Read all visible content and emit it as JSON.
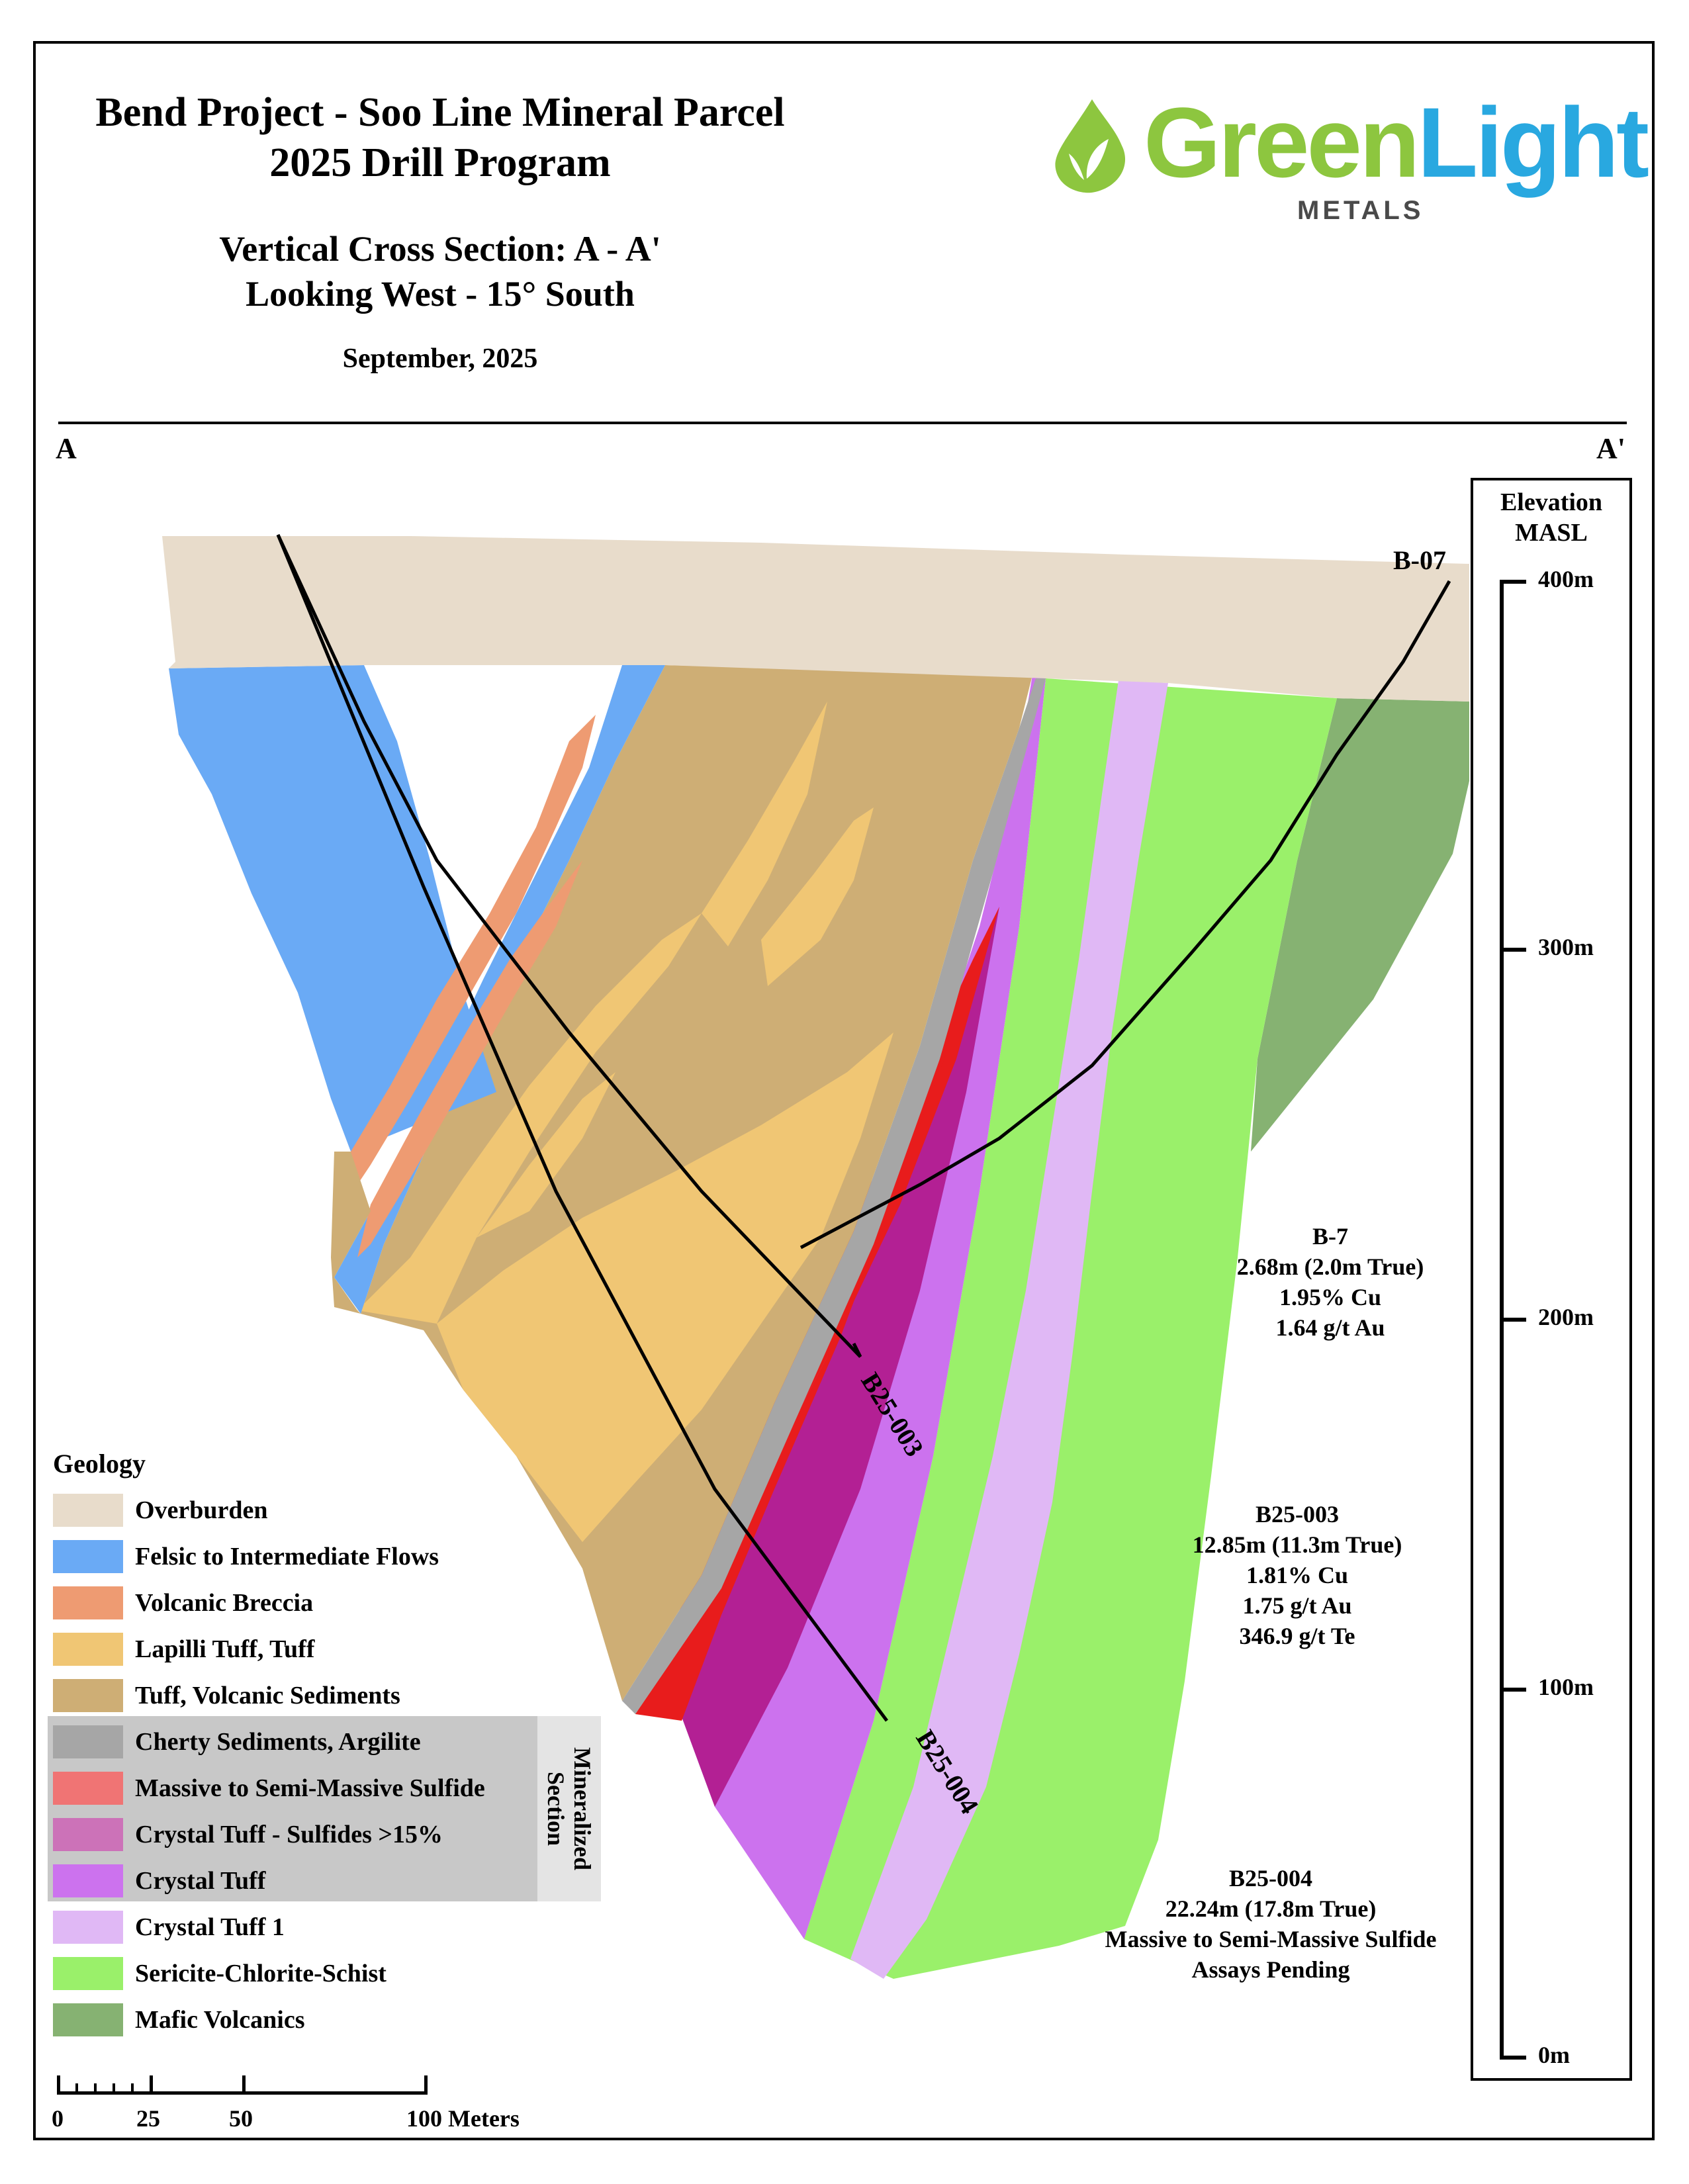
{
  "header": {
    "title_line1": "Bend Project - Soo Line Mineral Parcel",
    "title_line2": "2025 Drill Program",
    "section_line1": "Vertical Cross Section: A - A'",
    "section_line2": "Looking West - 15° South",
    "date": "September, 2025"
  },
  "logo": {
    "word_green": "Green",
    "word_light": "Light",
    "word_metals": "METALS",
    "icon": "leaf-drop-icon",
    "colors": {
      "green": "#8dc63f",
      "blue": "#29a8e0"
    }
  },
  "section_ends": {
    "left": "A",
    "right": "A'"
  },
  "drillholes": [
    {
      "name": "B-07"
    },
    {
      "name": "B25-003"
    },
    {
      "name": "B25-004"
    }
  ],
  "intercepts": [
    {
      "lines": [
        "B-7",
        "2.68m (2.0m True)",
        "1.95% Cu",
        "1.64 g/t Au"
      ]
    },
    {
      "lines": [
        "B25-003",
        "12.85m (11.3m True)",
        "1.81% Cu",
        "1.75 g/t Au",
        "346.9 g/t Te"
      ]
    },
    {
      "lines": [
        "B25-004",
        "22.24m (17.8m True)",
        "Massive to Semi-Massive Sulfide",
        "Assays Pending"
      ]
    }
  ],
  "elevation": {
    "title_line1": "Elevation",
    "title_line2": "MASL",
    "ticks": [
      "400m",
      "300m",
      "200m",
      "100m",
      "0m"
    ]
  },
  "legend": {
    "title": "Geology",
    "mineralized_label_line1": "Mineralized",
    "mineralized_label_line2": "Section",
    "items": [
      {
        "label": "Overburden",
        "color": "#e8dccb"
      },
      {
        "label": "Felsic to Intermediate Flows",
        "color": "#6aaaf5"
      },
      {
        "label": "Volcanic Breccia",
        "color": "#ee9b72"
      },
      {
        "label": "Lapilli Tuff, Tuff",
        "color": "#f0c674"
      },
      {
        "label": "Tuff, Volcanic Sediments",
        "color": "#ceae75"
      },
      {
        "label": "Cherty Sediments, Argilite",
        "color": "#a6a6a6"
      },
      {
        "label": "Massive to Semi-Massive Sulfide",
        "color": "#f07474"
      },
      {
        "label": "Crystal Tuff - Sulfides >15%",
        "color": "#cc72b8"
      },
      {
        "label": "Crystal Tuff",
        "color": "#cc72ee"
      },
      {
        "label": "Crystal Tuff 1",
        "color": "#e0b8f5"
      },
      {
        "label": "Sericite-Chlorite-Schist",
        "color": "#9af06a"
      },
      {
        "label": "Mafic Volcanics",
        "color": "#86b272"
      }
    ]
  },
  "scale_bar": {
    "labels": [
      "0",
      "25",
      "50",
      "100 Meters"
    ]
  }
}
